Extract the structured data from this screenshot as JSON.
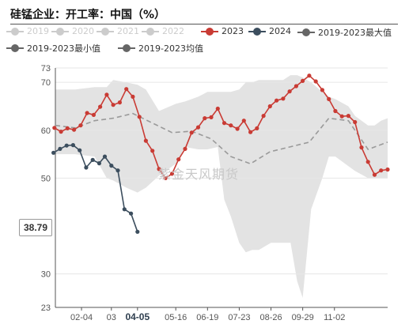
{
  "title": "硅锰企业：开工率：中国（%）",
  "watermark": "紫金天风期货",
  "value_badge": "38.79",
  "colors": {
    "band": "#e3e3e3",
    "avg": "#9a9a9a",
    "y2023": "#c93b34",
    "y2024": "#3c4e5e",
    "dim": "#cccccc",
    "dark": "#666666"
  },
  "legend": [
    {
      "label": "2019",
      "color": "#cccccc",
      "dim": true
    },
    {
      "label": "2020",
      "color": "#cccccc",
      "dim": true
    },
    {
      "label": "2021",
      "color": "#cccccc",
      "dim": true
    },
    {
      "label": "2022",
      "color": "#cccccc",
      "dim": true
    },
    {
      "label": "2023",
      "color": "#c93b34",
      "dim": false
    },
    {
      "label": "2024",
      "color": "#3c4e5e",
      "dim": false
    },
    {
      "label": "2019-2023最大值",
      "color": "#666666",
      "dim": false
    },
    {
      "label": "2019-2023最小值",
      "color": "#666666",
      "dim": false
    },
    {
      "label": "2019-2023均值",
      "color": "#666666",
      "dim": false
    }
  ],
  "chart_data": {
    "type": "line",
    "title": "硅锰企业：开工率：中国（%）",
    "x_domain": [
      "01-07",
      "12-29"
    ],
    "x_ticks": [
      "02-04",
      "03",
      "04-05",
      "05-16",
      "06-19",
      "07-23",
      "08-26",
      "09-29",
      "11-02"
    ],
    "x_tick_dates": [
      "02-04",
      "03-08",
      "04-05",
      "05-16",
      "06-19",
      "07-23",
      "08-26",
      "09-29",
      "11-02"
    ],
    "highlight_tick": "04-05",
    "y_ticks": [
      23,
      30,
      50,
      60,
      70,
      73
    ],
    "ylim": [
      23,
      73
    ],
    "series": [
      {
        "name": "2023",
        "dates": [
          "01-06",
          "01-13",
          "01-20",
          "01-27",
          "02-03",
          "02-10",
          "02-17",
          "02-24",
          "03-03",
          "03-10",
          "03-17",
          "03-24",
          "03-31",
          "04-07",
          "04-14",
          "04-21",
          "04-28",
          "05-05",
          "05-12",
          "05-19",
          "05-26",
          "06-02",
          "06-09",
          "06-16",
          "06-23",
          "06-30",
          "07-07",
          "07-14",
          "07-21",
          "07-28",
          "08-04",
          "08-11",
          "08-18",
          "08-25",
          "09-01",
          "09-08",
          "09-15",
          "09-22",
          "09-29",
          "10-06",
          "10-13",
          "10-20",
          "10-27",
          "11-03",
          "11-10",
          "11-17",
          "11-24",
          "12-01",
          "12-08",
          "12-15",
          "12-22",
          "12-29"
        ],
        "values": [
          60.5,
          59.7,
          60.4,
          60.1,
          61,
          63.6,
          63.2,
          64.9,
          67.4,
          65.3,
          65.8,
          68.6,
          67,
          62.8,
          57.8,
          55.7,
          51.9,
          50,
          50.9,
          53.9,
          56.1,
          59.5,
          60.6,
          62.5,
          62.7,
          64.5,
          61.5,
          61,
          60.3,
          62,
          59.6,
          60.4,
          63,
          65,
          66.2,
          66.6,
          68.1,
          69.2,
          70.3,
          71.4,
          70.2,
          68.4,
          66.5,
          64,
          62.9,
          63,
          61.7,
          56.4,
          53.4,
          50.7,
          51.6,
          51.8
        ]
      },
      {
        "name": "2024",
        "dates": [
          "01-05",
          "01-12",
          "01-19",
          "01-26",
          "02-02",
          "02-09",
          "02-16",
          "02-23",
          "03-01",
          "03-08",
          "03-15",
          "03-22",
          "03-29",
          "04-05"
        ],
        "values": [
          55.3,
          56.1,
          56.8,
          56.9,
          55.8,
          52.2,
          53.8,
          53.1,
          54.5,
          52.6,
          51.6,
          43.5,
          42.6,
          38.79
        ]
      },
      {
        "name": "2019-2023均值",
        "dates": [
          "01-07",
          "01-28",
          "02-18",
          "03-10",
          "03-31",
          "04-21",
          "05-12",
          "06-02",
          "06-23",
          "07-14",
          "08-04",
          "08-25",
          "09-15",
          "10-06",
          "10-27",
          "11-17",
          "12-08",
          "12-29"
        ],
        "values": [
          61,
          60.5,
          62,
          62.5,
          63.5,
          61.5,
          59.5,
          59.8,
          58.2,
          54.5,
          53,
          55.5,
          56.5,
          57.5,
          62.5,
          62,
          56,
          57.5
        ]
      }
    ],
    "band": {
      "dates": [
        "01-07",
        "01-28",
        "02-18",
        "03-03",
        "03-10",
        "03-24",
        "04-05",
        "04-14",
        "04-28",
        "05-16",
        "05-26",
        "06-09",
        "06-19",
        "06-30",
        "07-07",
        "07-14",
        "07-23",
        "07-30",
        "08-06",
        "08-13",
        "08-26",
        "09-08",
        "09-16",
        "09-23",
        "09-29",
        "10-08",
        "10-20",
        "10-27",
        "11-03",
        "11-17",
        "11-24",
        "12-08",
        "12-15",
        "12-22",
        "12-29"
      ],
      "max": [
        68.5,
        68.5,
        69,
        69,
        70.5,
        70,
        69.5,
        68.5,
        64,
        65.5,
        66,
        67,
        68,
        68,
        68,
        68,
        68.5,
        70,
        70,
        70.5,
        70.5,
        70.5,
        71.5,
        71.5,
        71,
        70,
        68,
        67,
        66.5,
        65,
        63,
        61,
        61,
        62,
        62.5
      ],
      "min": [
        55,
        55,
        54.5,
        50,
        49.5,
        48,
        47,
        48,
        50.5,
        53,
        56.5,
        56,
        56,
        56.5,
        45.5,
        42,
        36.5,
        34.5,
        35,
        35,
        36.5,
        36.5,
        36.5,
        28.5,
        25,
        43.5,
        50,
        54.5,
        54.5,
        52.5,
        51.5,
        50,
        50,
        50,
        50
      ]
    }
  }
}
